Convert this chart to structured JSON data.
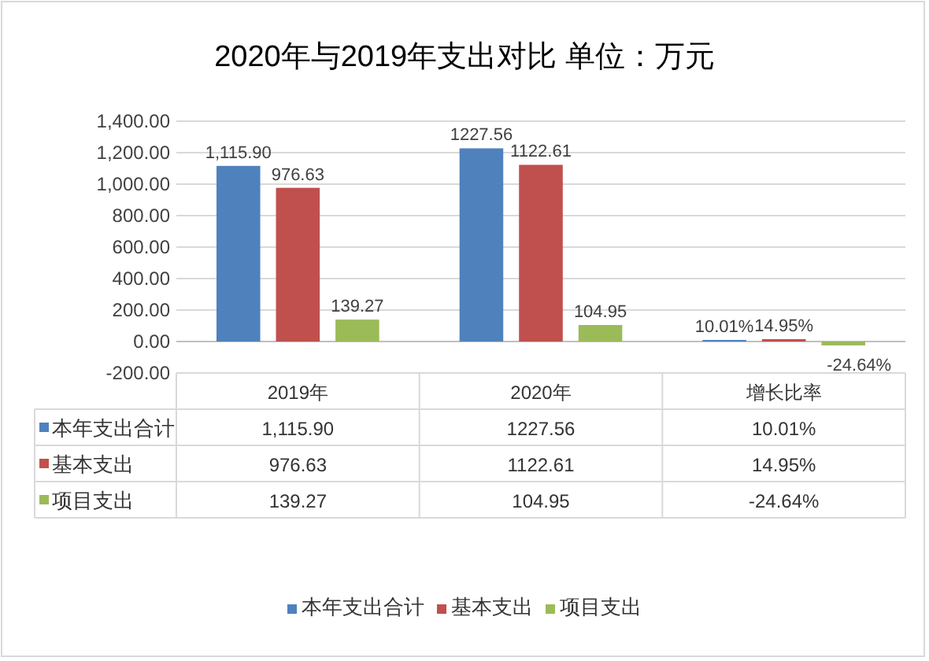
{
  "chart_data": {
    "type": "bar",
    "title": "2020年与2019年支出对比   单位：万元",
    "categories": [
      "2019年",
      "2020年",
      "增长比率"
    ],
    "series": [
      {
        "name": "本年支出合计",
        "color": "#4f81bd",
        "values": [
          1115.9,
          1227.56,
          10.01
        ],
        "value_labels": [
          "1,115.90",
          "1227.56",
          "10.01%"
        ]
      },
      {
        "name": "基本支出",
        "color": "#c0504d",
        "values": [
          976.63,
          1122.61,
          14.95
        ],
        "value_labels": [
          "976.63",
          "1122.61",
          "14.95%"
        ]
      },
      {
        "name": "项目支出",
        "color": "#9bbb59",
        "values": [
          139.27,
          104.95,
          -24.64
        ],
        "value_labels": [
          "139.27",
          "104.95",
          "-24.64%"
        ]
      }
    ],
    "ylim": [
      -200,
      1400
    ],
    "yticks": [
      {
        "value": -200,
        "label": "-200.00"
      },
      {
        "value": 0,
        "label": "0.00"
      },
      {
        "value": 200,
        "label": "200.00"
      },
      {
        "value": 400,
        "label": "400.00"
      },
      {
        "value": 600,
        "label": "600.00"
      },
      {
        "value": 800,
        "label": "800.00"
      },
      {
        "value": 1000,
        "label": "1,000.00"
      },
      {
        "value": 1200,
        "label": "1,200.00"
      },
      {
        "value": 1400,
        "label": "1,400.00"
      }
    ],
    "grid": "y",
    "legend": "bottom"
  }
}
